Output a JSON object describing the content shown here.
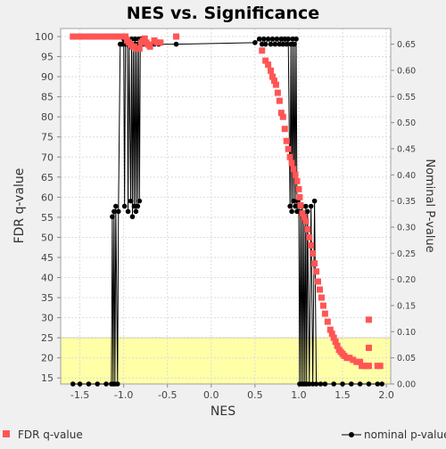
{
  "chart_data": {
    "type": "scatter",
    "title": "NES vs. Significance",
    "xlabel": "NES",
    "ylabel_left": "FDR q-value",
    "ylabel_right": "Nominal P-value",
    "xlim": [
      -1.72,
      2.05
    ],
    "ylim_left": [
      13.5,
      102
    ],
    "ylim_right": [
      0.0,
      0.68
    ],
    "x_ticks": [
      "-1.5",
      "-1.0",
      "-0.5",
      "0.0",
      "0.5",
      "1.0",
      "1.5",
      "2.0"
    ],
    "y_left_ticks": [
      "15",
      "20",
      "25",
      "30",
      "35",
      "40",
      "45",
      "50",
      "55",
      "60",
      "65",
      "70",
      "75",
      "80",
      "85",
      "90",
      "95",
      "100"
    ],
    "y_right_ticks": [
      "0.00",
      "0.05",
      "0.10",
      "0.15",
      "0.20",
      "0.25",
      "0.30",
      "0.35",
      "0.40",
      "0.45",
      "0.50",
      "0.55",
      "0.60",
      "0.65"
    ],
    "grid": true,
    "highlight_band": {
      "y_from": 13.5,
      "y_to": 25,
      "color": "#ffffa8"
    },
    "colors": {
      "fdr": "#ff5555",
      "nominal": "#000000",
      "background": "#f0f0f0",
      "plot_bg": "#ffffff"
    },
    "legend_placement": "bottom",
    "series": [
      {
        "name": "FDR q-value",
        "axis": "left",
        "marker": "square",
        "points": [
          [
            -1.58,
            100
          ],
          [
            -1.55,
            100
          ],
          [
            -1.52,
            100
          ],
          [
            -1.49,
            100
          ],
          [
            -1.46,
            100
          ],
          [
            -1.43,
            100
          ],
          [
            -1.4,
            100
          ],
          [
            -1.37,
            100
          ],
          [
            -1.34,
            100
          ],
          [
            -1.31,
            100
          ],
          [
            -1.28,
            100
          ],
          [
            -1.25,
            100
          ],
          [
            -1.22,
            100
          ],
          [
            -1.19,
            100
          ],
          [
            -1.16,
            100
          ],
          [
            -1.13,
            100
          ],
          [
            -1.1,
            100
          ],
          [
            -1.07,
            100
          ],
          [
            -1.04,
            100
          ],
          [
            -1.01,
            100
          ],
          [
            -0.98,
            100
          ],
          [
            -0.96,
            99
          ],
          [
            -0.94,
            98.5
          ],
          [
            -0.92,
            98
          ],
          [
            -0.9,
            97.5
          ],
          [
            -0.88,
            97.5
          ],
          [
            -0.86,
            97
          ],
          [
            -0.84,
            97
          ],
          [
            -0.82,
            97
          ],
          [
            -0.8,
            98.5
          ],
          [
            -0.78,
            99
          ],
          [
            -0.76,
            99.5
          ],
          [
            -0.74,
            98.5
          ],
          [
            -0.72,
            98
          ],
          [
            -0.7,
            97.5
          ],
          [
            -0.65,
            99
          ],
          [
            -0.62,
            98.5
          ],
          [
            -0.58,
            98.5
          ],
          [
            -0.4,
            100
          ],
          [
            0.58,
            96.5
          ],
          [
            0.62,
            94
          ],
          [
            0.65,
            93
          ],
          [
            0.68,
            91.5
          ],
          [
            0.7,
            90
          ],
          [
            0.72,
            89
          ],
          [
            0.74,
            88
          ],
          [
            0.76,
            86
          ],
          [
            0.78,
            84
          ],
          [
            0.8,
            81
          ],
          [
            0.82,
            80
          ],
          [
            0.84,
            77
          ],
          [
            0.86,
            74
          ],
          [
            0.88,
            72
          ],
          [
            0.9,
            70
          ],
          [
            0.92,
            68.5
          ],
          [
            0.94,
            67
          ],
          [
            0.96,
            65.5
          ],
          [
            0.98,
            64
          ],
          [
            1.0,
            62
          ],
          [
            1.01,
            60
          ],
          [
            1.02,
            58
          ],
          [
            1.04,
            56
          ],
          [
            1.06,
            55
          ],
          [
            1.08,
            54
          ],
          [
            1.1,
            52
          ],
          [
            1.12,
            50
          ],
          [
            1.14,
            48
          ],
          [
            1.16,
            46
          ],
          [
            1.18,
            43.5
          ],
          [
            1.2,
            41.5
          ],
          [
            1.22,
            39
          ],
          [
            1.24,
            37
          ],
          [
            1.26,
            35
          ],
          [
            1.28,
            33
          ],
          [
            1.3,
            31
          ],
          [
            1.33,
            29
          ],
          [
            1.36,
            27
          ],
          [
            1.38,
            26
          ],
          [
            1.4,
            25
          ],
          [
            1.42,
            24
          ],
          [
            1.44,
            23
          ],
          [
            1.46,
            22
          ],
          [
            1.48,
            21.5
          ],
          [
            1.5,
            21
          ],
          [
            1.52,
            20.5
          ],
          [
            1.55,
            20
          ],
          [
            1.58,
            20
          ],
          [
            1.62,
            19.5
          ],
          [
            1.66,
            19
          ],
          [
            1.7,
            19
          ],
          [
            1.72,
            18
          ],
          [
            1.75,
            18
          ],
          [
            1.78,
            18
          ],
          [
            1.8,
            18
          ],
          [
            1.9,
            18
          ],
          [
            1.93,
            18
          ],
          [
            1.8,
            29.5
          ],
          [
            1.8,
            22.5
          ]
        ]
      },
      {
        "name": "nominal p-value",
        "axis": "right",
        "marker": "circle",
        "points": [
          [
            -1.58,
            0.0
          ],
          [
            -1.5,
            0.0
          ],
          [
            -1.4,
            0.0
          ],
          [
            -1.3,
            0.0
          ],
          [
            -1.2,
            0.0
          ],
          [
            -1.14,
            0.0
          ],
          [
            -1.13,
            0.32
          ],
          [
            -1.12,
            0.0
          ],
          [
            -1.11,
            0.33
          ],
          [
            -1.1,
            0.0
          ],
          [
            -1.09,
            0.34
          ],
          [
            -1.07,
            0.0
          ],
          [
            -1.06,
            0.33
          ],
          [
            -1.04,
            0.65
          ],
          [
            -1.02,
            0.65
          ],
          [
            -1.0,
            0.66
          ],
          [
            -0.99,
            0.34
          ],
          [
            -0.98,
            0.65
          ],
          [
            -0.96,
            0.66
          ],
          [
            -0.95,
            0.33
          ],
          [
            -0.94,
            0.65
          ],
          [
            -0.92,
            0.35
          ],
          [
            -0.91,
            0.66
          ],
          [
            -0.9,
            0.32
          ],
          [
            -0.89,
            0.65
          ],
          [
            -0.88,
            0.34
          ],
          [
            -0.87,
            0.66
          ],
          [
            -0.86,
            0.33
          ],
          [
            -0.85,
            0.65
          ],
          [
            -0.84,
            0.34
          ],
          [
            -0.83,
            0.66
          ],
          [
            -0.82,
            0.35
          ],
          [
            -0.81,
            0.65
          ],
          [
            -0.8,
            0.66
          ],
          [
            -0.78,
            0.65
          ],
          [
            -0.76,
            0.66
          ],
          [
            -0.74,
            0.65
          ],
          [
            -0.7,
            0.65
          ],
          [
            -0.65,
            0.65
          ],
          [
            -0.6,
            0.65
          ],
          [
            -0.4,
            0.65
          ],
          [
            0.5,
            0.653
          ],
          [
            0.55,
            0.66
          ],
          [
            0.58,
            0.65
          ],
          [
            0.6,
            0.66
          ],
          [
            0.62,
            0.65
          ],
          [
            0.65,
            0.66
          ],
          [
            0.68,
            0.65
          ],
          [
            0.7,
            0.66
          ],
          [
            0.73,
            0.65
          ],
          [
            0.75,
            0.66
          ],
          [
            0.78,
            0.65
          ],
          [
            0.8,
            0.66
          ],
          [
            0.82,
            0.65
          ],
          [
            0.84,
            0.66
          ],
          [
            0.86,
            0.65
          ],
          [
            0.88,
            0.66
          ],
          [
            0.9,
            0.34
          ],
          [
            0.91,
            0.65
          ],
          [
            0.92,
            0.33
          ],
          [
            0.93,
            0.66
          ],
          [
            0.94,
            0.35
          ],
          [
            0.95,
            0.65
          ],
          [
            0.96,
            0.34
          ],
          [
            0.97,
            0.66
          ],
          [
            0.98,
            0.33
          ],
          [
            0.99,
            0.35
          ],
          [
            1.0,
            0.34
          ],
          [
            1.01,
            0.0
          ],
          [
            1.02,
            0.33
          ],
          [
            1.03,
            0.0
          ],
          [
            1.04,
            0.34
          ],
          [
            1.05,
            0.0
          ],
          [
            1.06,
            0.32
          ],
          [
            1.07,
            0.0
          ],
          [
            1.08,
            0.34
          ],
          [
            1.09,
            0.0
          ],
          [
            1.1,
            0.33
          ],
          [
            1.12,
            0.0
          ],
          [
            1.14,
            0.34
          ],
          [
            1.16,
            0.0
          ],
          [
            1.18,
            0.35
          ],
          [
            1.2,
            0.0
          ],
          [
            1.25,
            0.0
          ],
          [
            1.3,
            0.0
          ],
          [
            1.4,
            0.0
          ],
          [
            1.5,
            0.0
          ],
          [
            1.6,
            0.0
          ],
          [
            1.7,
            0.0
          ],
          [
            1.8,
            0.0
          ],
          [
            1.9,
            0.0
          ],
          [
            1.95,
            0.0
          ]
        ]
      }
    ]
  }
}
